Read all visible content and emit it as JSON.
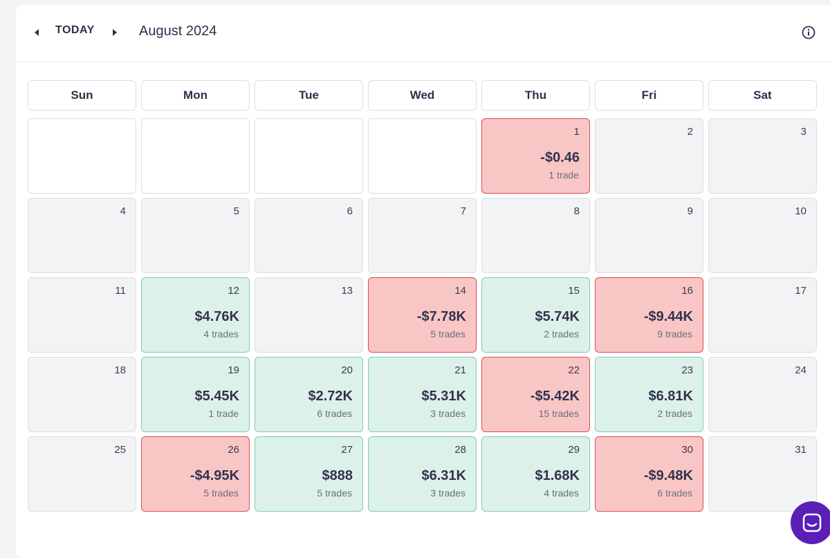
{
  "header": {
    "prev_icon": "caret-left-icon",
    "today_label": "TODAY",
    "next_icon": "caret-right-icon",
    "month_title": "August 2024",
    "info_icon": "info-circle-icon"
  },
  "weekdays": [
    "Sun",
    "Mon",
    "Tue",
    "Wed",
    "Thu",
    "Fri",
    "Sat"
  ],
  "colors": {
    "loss": "#f9c6c6",
    "gain": "#dcf1ea",
    "chat": "#5b1fb8"
  },
  "days": [
    {
      "num": ""
    },
    {
      "num": ""
    },
    {
      "num": ""
    },
    {
      "num": ""
    },
    {
      "num": "1",
      "pnl": "-$0.46",
      "trades": "1 trade",
      "status": "loss"
    },
    {
      "num": "2"
    },
    {
      "num": "3"
    },
    {
      "num": "4"
    },
    {
      "num": "5"
    },
    {
      "num": "6"
    },
    {
      "num": "7"
    },
    {
      "num": "8"
    },
    {
      "num": "9"
    },
    {
      "num": "10"
    },
    {
      "num": "11"
    },
    {
      "num": "12",
      "pnl": "$4.76K",
      "trades": "4 trades",
      "status": "gain"
    },
    {
      "num": "13"
    },
    {
      "num": "14",
      "pnl": "-$7.78K",
      "trades": "5 trades",
      "status": "loss"
    },
    {
      "num": "15",
      "pnl": "$5.74K",
      "trades": "2 trades",
      "status": "gain"
    },
    {
      "num": "16",
      "pnl": "-$9.44K",
      "trades": "9 trades",
      "status": "loss"
    },
    {
      "num": "17"
    },
    {
      "num": "18"
    },
    {
      "num": "19",
      "pnl": "$5.45K",
      "trades": "1 trade",
      "status": "gain"
    },
    {
      "num": "20",
      "pnl": "$2.72K",
      "trades": "6 trades",
      "status": "gain"
    },
    {
      "num": "21",
      "pnl": "$5.31K",
      "trades": "3 trades",
      "status": "gain"
    },
    {
      "num": "22",
      "pnl": "-$5.42K",
      "trades": "15 trades",
      "status": "loss"
    },
    {
      "num": "23",
      "pnl": "$6.81K",
      "trades": "2 trades",
      "status": "gain"
    },
    {
      "num": "24"
    },
    {
      "num": "25"
    },
    {
      "num": "26",
      "pnl": "-$4.95K",
      "trades": "5 trades",
      "status": "loss"
    },
    {
      "num": "27",
      "pnl": "$888",
      "trades": "5 trades",
      "status": "gain"
    },
    {
      "num": "28",
      "pnl": "$6.31K",
      "trades": "3 trades",
      "status": "gain"
    },
    {
      "num": "29",
      "pnl": "$1.68K",
      "trades": "4 trades",
      "status": "gain"
    },
    {
      "num": "30",
      "pnl": "-$9.48K",
      "trades": "6 trades",
      "status": "loss"
    },
    {
      "num": "31"
    }
  ],
  "chat": {
    "icon": "chat-bubble-icon"
  }
}
